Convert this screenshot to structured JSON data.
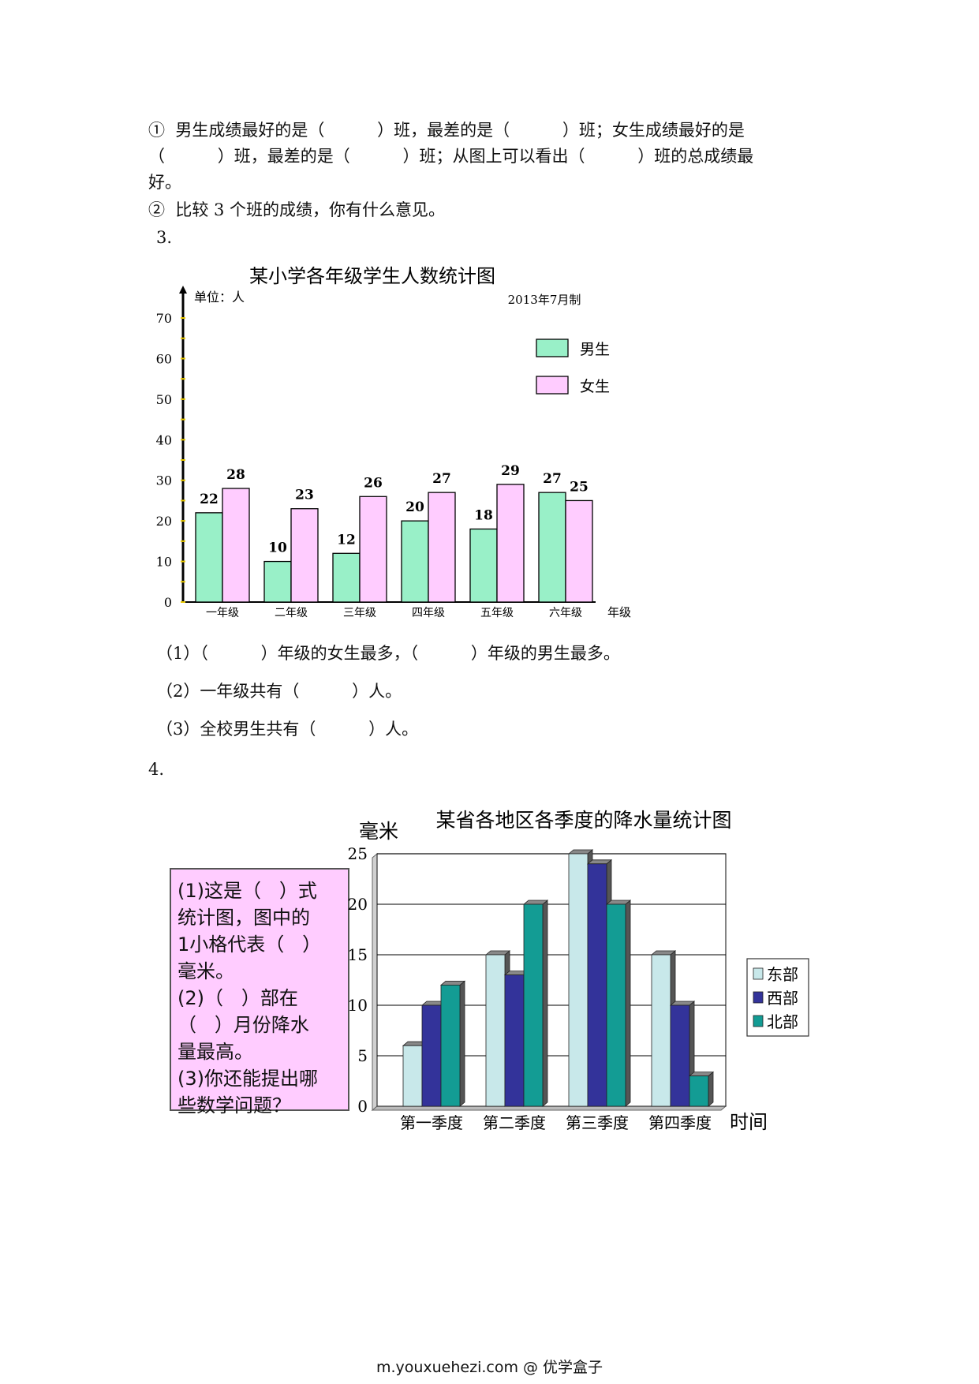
{
  "intro": {
    "lines": [
      "①  男生成绩最好的是（          ）班，最差的是（          ）班；女生成绩最好的是",
      "（          ）班，最差的是（          ）班；从图上可以看出（          ）班的总成绩最",
      "好。",
      "②  比较 3 个班的成绩，你有什么意见。"
    ]
  },
  "q3": {
    "number": "3.",
    "questions": [
      "（1）（          ）年级的女生最多，（          ）年级的男生最多。",
      "（2）一年级共有（          ）人。",
      "（3）全校男生共有（          ）人。"
    ]
  },
  "q4": {
    "number": "4.",
    "note_lines": [
      "(1)这是（   ）式",
      "统计图，图中的",
      "1小格代表（   ）",
      "毫米。",
      "(2)（   ）部在",
      "（   ）月份降水",
      "量最高。",
      "(3)你还能提出哪",
      "些数学问题？"
    ]
  },
  "chart_data": [
    {
      "type": "bar",
      "title": "某小学各年级学生人数统计图",
      "unit_label": "单位：人",
      "date_label": "2013年7月制",
      "xlabel": "年级",
      "categories": [
        "一年级",
        "二年级",
        "三年级",
        "四年级",
        "五年级",
        "六年级"
      ],
      "series": [
        {
          "name": "男生",
          "values": [
            22,
            10,
            12,
            20,
            18,
            27
          ],
          "color": "#99f0c8"
        },
        {
          "name": "女生",
          "values": [
            28,
            23,
            26,
            27,
            29,
            25
          ],
          "color": "#ffccff"
        }
      ],
      "ylim": [
        0,
        70
      ],
      "yticks": [
        "0",
        "10",
        "20",
        "30",
        "40",
        "50",
        "60",
        "70"
      ],
      "legend": "top-right"
    },
    {
      "type": "bar",
      "title": "某省各地区各季度的降水量统计图",
      "ylabel": "毫米",
      "xlabel": "时间",
      "categories": [
        "第一季度",
        "第二季度",
        "第三季度",
        "第四季度"
      ],
      "series": [
        {
          "name": "东部",
          "values": [
            6,
            15,
            25,
            15
          ],
          "color": "#c8e8ea"
        },
        {
          "name": "西部",
          "values": [
            10,
            13,
            24,
            10
          ],
          "color": "#33339a"
        },
        {
          "name": "北部",
          "values": [
            12,
            20,
            20,
            3
          ],
          "color": "#139c94"
        }
      ],
      "ylim": [
        0,
        25
      ],
      "yticks": [
        "0",
        "5",
        "10",
        "15",
        "20",
        "25"
      ],
      "grid": true,
      "legend": "right"
    }
  ],
  "footer": "m.youxuehezi.com @ 优学盒子"
}
